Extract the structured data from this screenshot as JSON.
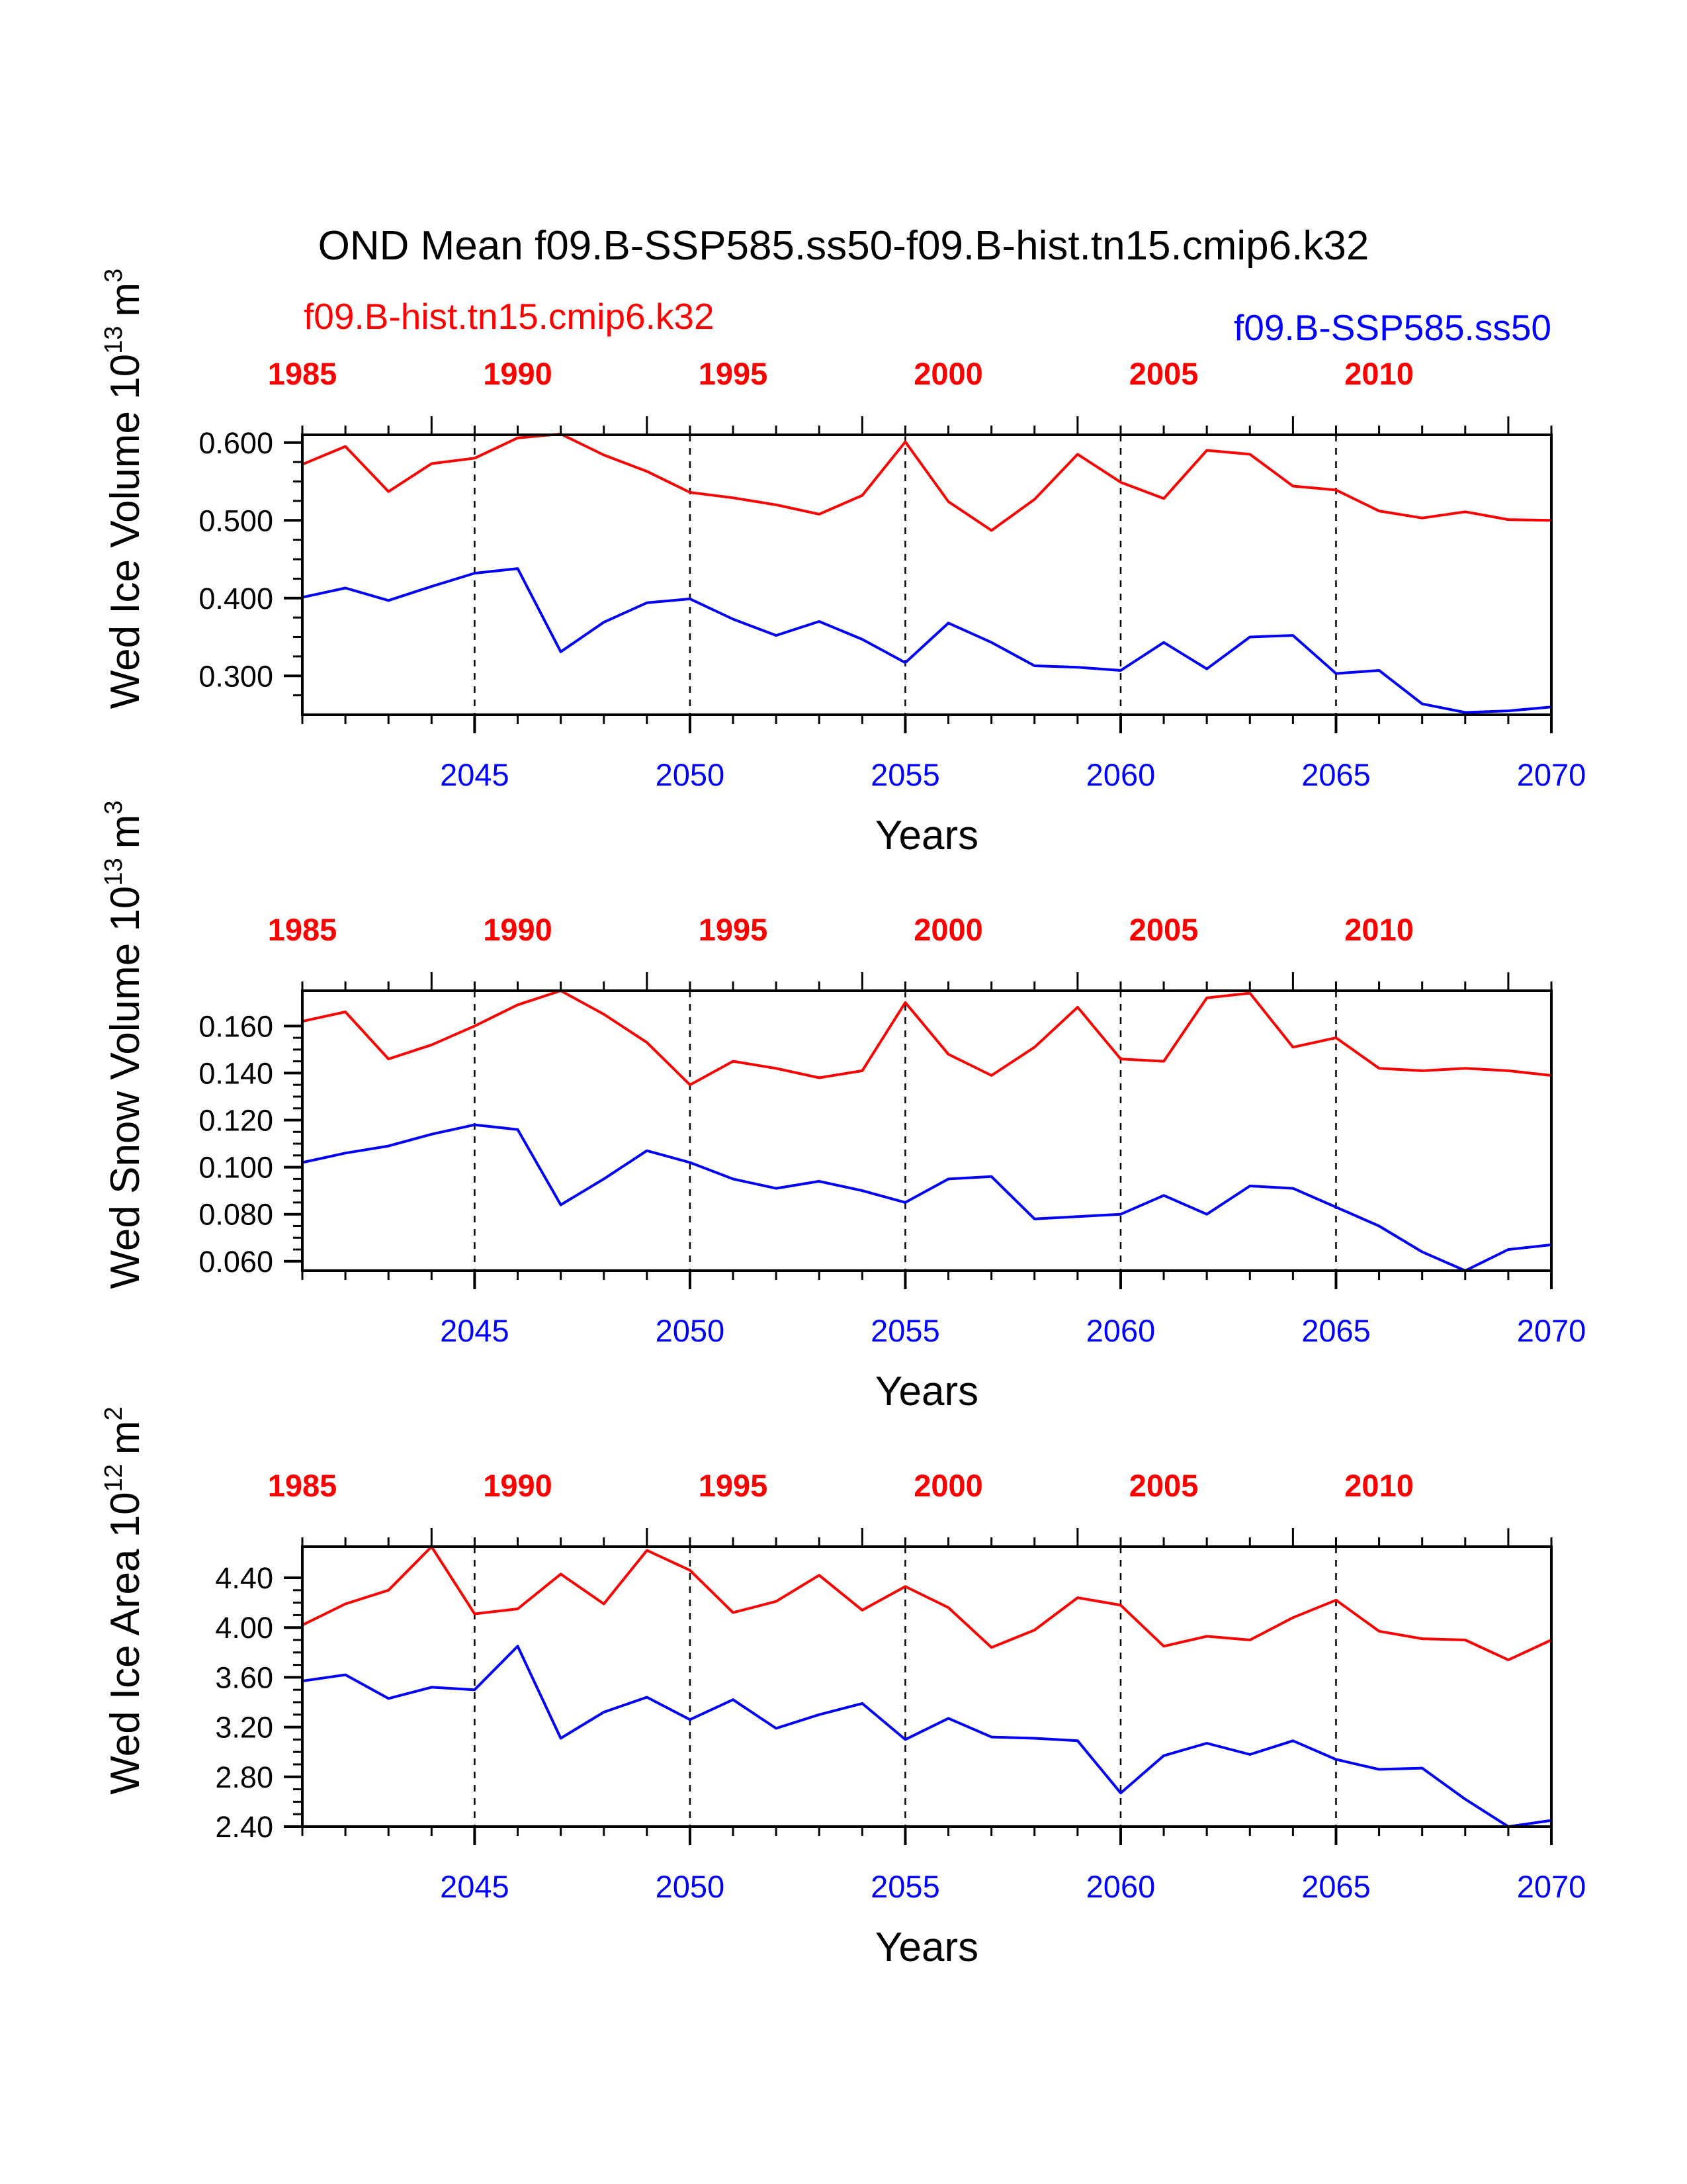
{
  "title": "OND Mean f09.B-SSP585.ss50-f09.B-hist.tn15.cmip6.k32",
  "legend_red": "f09.B-hist.tn15.cmip6.k32",
  "legend_blue": "f09.B-SSP585.ss50",
  "colors": {
    "hist": "#ff0000",
    "ssp": "#0000ff",
    "axis": "#000000"
  },
  "chart_data": [
    {
      "type": "line",
      "ylabel": "Wed Ice Volume 10^13 m^3",
      "ylabel_main": "Wed Ice Volume 10",
      "ylabel_exp": "13",
      "ylabel_unit": "m",
      "ylabel_unit_exp": "3",
      "xlabel": "Years",
      "x_bottom_label": "Years",
      "xlim": [
        2041,
        2070
      ],
      "ylim": [
        0.25,
        0.61
      ],
      "yticks": [
        0.3,
        0.4,
        0.5,
        0.6
      ],
      "ytick_labels": [
        "0.300",
        "0.400",
        "0.500",
        "0.600"
      ],
      "x_bottom_ticks": [
        "2045",
        "2050",
        "2055",
        "2060",
        "2065",
        "2070"
      ],
      "x_top_ticks": [
        "1985",
        "1990",
        "1995",
        "2000",
        "2005",
        "2010"
      ],
      "grid": "dashed vertical at 5-year ticks",
      "series": [
        {
          "name": "f09.B-hist.tn15.cmip6.k32",
          "color": "#ff0000",
          "values": [
            0.572,
            0.595,
            0.537,
            0.573,
            0.58,
            0.606,
            0.611,
            0.584,
            0.563,
            0.536,
            0.529,
            0.52,
            0.508,
            0.532,
            0.601,
            0.524,
            0.487,
            0.527,
            0.585,
            0.549,
            0.528,
            0.59,
            0.585,
            0.544,
            0.539,
            0.512,
            0.503,
            0.511,
            0.501,
            0.5
          ]
        },
        {
          "name": "f09.B-SSP585.ss50",
          "color": "#0000ff",
          "values": [
            0.401,
            0.413,
            0.397,
            0.415,
            0.432,
            0.438,
            0.331,
            0.369,
            0.394,
            0.399,
            0.373,
            0.352,
            0.37,
            0.347,
            0.317,
            0.368,
            0.343,
            0.313,
            0.311,
            0.307,
            0.343,
            0.309,
            0.35,
            0.352,
            0.303,
            0.307,
            0.264,
            0.253,
            0.255,
            0.26
          ]
        }
      ]
    },
    {
      "type": "line",
      "ylabel": "Wed Snow Volume 10^13 m^3",
      "ylabel_main": "Wed Snow Volume 10",
      "ylabel_exp": "13",
      "ylabel_unit": "m",
      "ylabel_unit_exp": "3",
      "xlabel": "Years",
      "x_bottom_label": "Years",
      "xlim": [
        2041,
        2070
      ],
      "ylim": [
        0.056,
        0.175
      ],
      "yticks": [
        0.06,
        0.08,
        0.1,
        0.12,
        0.14,
        0.16
      ],
      "ytick_labels": [
        "0.060",
        "0.080",
        "0.100",
        "0.120",
        "0.140",
        "0.160"
      ],
      "x_bottom_ticks": [
        "2045",
        "2050",
        "2055",
        "2060",
        "2065",
        "2070"
      ],
      "x_top_ticks": [
        "1985",
        "1990",
        "1995",
        "2000",
        "2005",
        "2010"
      ],
      "grid": "dashed vertical at 5-year ticks",
      "series": [
        {
          "name": "f09.B-hist.tn15.cmip6.k32",
          "color": "#ff0000",
          "values": [
            0.162,
            0.166,
            0.146,
            0.152,
            0.16,
            0.169,
            0.175,
            0.165,
            0.153,
            0.135,
            0.145,
            0.142,
            0.138,
            0.141,
            0.17,
            0.148,
            0.139,
            0.151,
            0.168,
            0.146,
            0.145,
            0.172,
            0.174,
            0.151,
            0.155,
            0.142,
            0.141,
            0.142,
            0.141,
            0.139
          ]
        },
        {
          "name": "f09.B-SSP585.ss50",
          "color": "#0000ff",
          "values": [
            0.102,
            0.106,
            0.109,
            0.114,
            0.118,
            0.116,
            0.084,
            0.095,
            0.107,
            0.102,
            0.095,
            0.091,
            0.094,
            0.09,
            0.085,
            0.095,
            0.096,
            0.078,
            0.079,
            0.08,
            0.088,
            0.08,
            0.092,
            0.091,
            0.083,
            0.075,
            0.064,
            0.056,
            0.065,
            0.067
          ]
        }
      ]
    },
    {
      "type": "line",
      "ylabel": "Wed Ice Area 10^12 m^2",
      "ylabel_main": "Wed Ice Area 10",
      "ylabel_exp": "12",
      "ylabel_unit": "m",
      "ylabel_unit_exp": "2",
      "xlabel": "Years",
      "x_bottom_label": "Years",
      "xlim": [
        2041,
        2070
      ],
      "ylim": [
        2.4,
        4.65
      ],
      "yticks": [
        2.4,
        2.8,
        3.2,
        3.6,
        4.0,
        4.4
      ],
      "ytick_labels": [
        "2.40",
        "2.80",
        "3.20",
        "3.60",
        "4.00",
        "4.40"
      ],
      "x_bottom_ticks": [
        "2045",
        "2050",
        "2055",
        "2060",
        "2065",
        "2070"
      ],
      "x_top_ticks": [
        "1985",
        "1990",
        "1995",
        "2000",
        "2005",
        "2010"
      ],
      "grid": "dashed vertical at 5-year ticks",
      "series": [
        {
          "name": "f09.B-hist.tn15.cmip6.k32",
          "color": "#ff0000",
          "values": [
            4.02,
            4.19,
            4.3,
            4.65,
            4.11,
            4.15,
            4.43,
            4.19,
            4.62,
            4.46,
            4.12,
            4.21,
            4.42,
            4.14,
            4.33,
            4.16,
            3.84,
            3.98,
            4.24,
            4.18,
            3.85,
            3.93,
            3.9,
            4.08,
            4.22,
            3.97,
            3.91,
            3.9,
            3.74,
            3.9
          ]
        },
        {
          "name": "f09.B-SSP585.ss50",
          "color": "#0000ff",
          "values": [
            3.57,
            3.62,
            3.43,
            3.52,
            3.5,
            3.85,
            3.11,
            3.32,
            3.44,
            3.26,
            3.42,
            3.19,
            3.3,
            3.39,
            3.1,
            3.27,
            3.12,
            3.11,
            3.09,
            2.67,
            2.97,
            3.07,
            2.98,
            3.09,
            2.94,
            2.86,
            2.87,
            2.62,
            2.4,
            2.45
          ]
        }
      ]
    }
  ]
}
